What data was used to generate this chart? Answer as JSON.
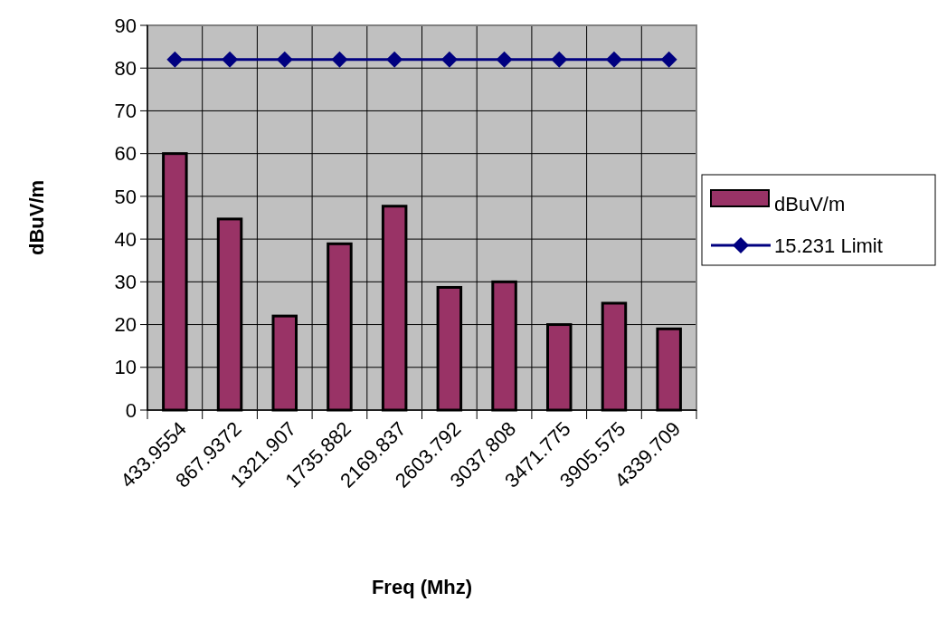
{
  "chart_data": {
    "type": "bar",
    "xlabel": "Freq (Mhz)",
    "ylabel": "dBuV/m",
    "categories": [
      "433.9554",
      "867.9372",
      "1321.907",
      "1735.882",
      "2169.837",
      "2603.792",
      "3037.808",
      "3471.775",
      "3905.575",
      "4339.709"
    ],
    "series": [
      {
        "name": "dBuV/m",
        "color": "#993366",
        "values": [
          60,
          44.7,
          22,
          38.9,
          47.7,
          28.7,
          30,
          20,
          25,
          19
        ]
      },
      {
        "name": "15.231 Limit",
        "type": "line",
        "color": "#000080",
        "marker": "diamond",
        "values": [
          82,
          82,
          82,
          82,
          82,
          82,
          82,
          82,
          82,
          82
        ]
      }
    ],
    "ylim": [
      0,
      90
    ],
    "yticks": [
      0,
      10,
      20,
      30,
      40,
      50,
      60,
      70,
      80,
      90
    ],
    "grid": true,
    "legend": "right"
  }
}
